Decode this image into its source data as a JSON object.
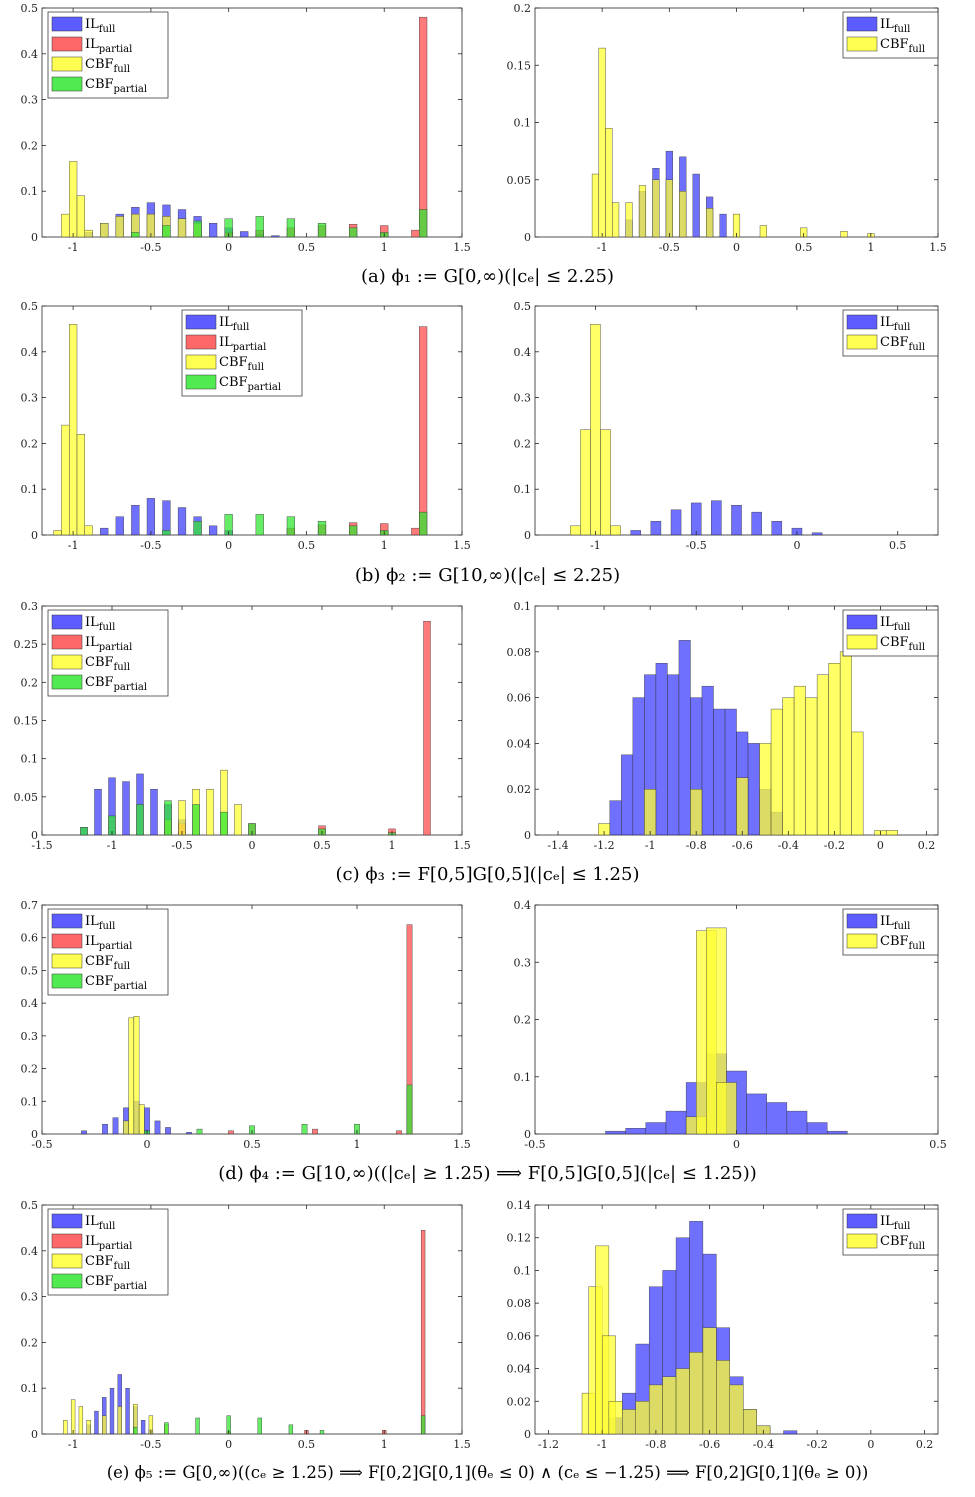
{
  "colors": {
    "IL_full": "#4040ff",
    "IL_partial": "#ff4d4d",
    "CBF_full": "#ffff33",
    "CBF_partial": "#33e633"
  },
  "legend_labels": {
    "IL_full": [
      "IL",
      "full"
    ],
    "IL_partial": [
      "IL",
      "partial"
    ],
    "CBF_full": [
      "CBF",
      "full"
    ],
    "CBF_partial": [
      "CBF",
      "partial"
    ]
  },
  "captions": [
    "(a) ϕ₁ := G[0,∞)(|cₑ| ≤ 2.25)",
    "(b) ϕ₂ := G[10,∞)(|cₑ| ≤ 2.25)",
    "(c) ϕ₃ := F[0,5]G[0,5](|cₑ| ≤ 1.25)",
    "(d) ϕ₄ := G[10,∞)((|cₑ| ≥ 1.25) ⟹ F[0,5]G[0,5](|cₑ| ≤ 1.25))",
    "(e) ϕ₅ := G[0,∞)((cₑ ≥ 1.25) ⟹ F[0,2]G[0,1](θₑ ≤ 0) ∧ (cₑ ≤ −1.25) ⟹ F[0,2]G[0,1](θₑ ≥ 0))"
  ],
  "chart_data": [
    {
      "type": "bar",
      "panel": "a-left",
      "xlim": [
        -1.2,
        1.5
      ],
      "ylim": [
        0,
        0.5
      ],
      "xticks": [
        "-1",
        "-0.5",
        "0",
        "0.5",
        "1",
        "1.5"
      ],
      "yticks": [
        "0",
        "0.1",
        "0.2",
        "0.3",
        "0.4",
        "0.5"
      ],
      "legend": [
        "IL_full",
        "IL_partial",
        "CBF_full",
        "CBF_partial"
      ],
      "legend_position": "top-left",
      "series": [
        {
          "key": "IL_full",
          "x": [
            -0.9,
            -0.8,
            -0.7,
            -0.6,
            -0.5,
            -0.4,
            -0.3,
            -0.2,
            -0.1,
            0,
            0.1,
            0.2,
            0.3
          ],
          "values": [
            0.01,
            0.03,
            0.05,
            0.065,
            0.075,
            0.07,
            0.06,
            0.045,
            0.03,
            0.02,
            0.012,
            0.006,
            0.003
          ]
        },
        {
          "key": "IL_partial",
          "x": [
            -0.2,
            0,
            0.2,
            0.4,
            0.6,
            0.8,
            1.0,
            1.2,
            1.25
          ],
          "values": [
            0.005,
            0.01,
            0.015,
            0.02,
            0.025,
            0.028,
            0.025,
            0.015,
            0.48
          ]
        },
        {
          "key": "CBF_full",
          "x": [
            -1.05,
            -1.0,
            -0.95,
            -0.9,
            -0.8,
            -0.7,
            -0.6,
            -0.5,
            -0.4,
            -0.3,
            -0.2
          ],
          "values": [
            0.05,
            0.165,
            0.09,
            0.015,
            0.03,
            0.045,
            0.05,
            0.05,
            0.045,
            0.04,
            0.03
          ]
        },
        {
          "key": "CBF_partial",
          "x": [
            -0.6,
            -0.4,
            -0.2,
            0,
            0.2,
            0.4,
            0.6,
            0.8,
            1.0,
            1.25
          ],
          "values": [
            0.01,
            0.025,
            0.035,
            0.04,
            0.045,
            0.04,
            0.03,
            0.02,
            0.01,
            0.06
          ]
        }
      ]
    },
    {
      "type": "bar",
      "panel": "a-right",
      "xlim": [
        -1.5,
        1.5
      ],
      "ylim": [
        0,
        0.2
      ],
      "xticks": [
        "-1",
        "-0.5",
        "0",
        "0.5",
        "1",
        "1.5"
      ],
      "yticks": [
        "0",
        "0.05",
        "0.1",
        "0.15",
        "0.2"
      ],
      "legend": [
        "IL_full",
        "CBF_full"
      ],
      "legend_position": "top-right",
      "series": [
        {
          "key": "IL_full",
          "x": [
            -0.8,
            -0.7,
            -0.6,
            -0.5,
            -0.4,
            -0.3,
            -0.2,
            -0.1
          ],
          "values": [
            0.015,
            0.04,
            0.06,
            0.075,
            0.07,
            0.055,
            0.035,
            0.02
          ]
        },
        {
          "key": "CBF_full",
          "x": [
            -1.05,
            -1.0,
            -0.95,
            -0.9,
            -0.8,
            -0.7,
            -0.6,
            -0.5,
            -0.4,
            -0.2,
            0,
            0.2,
            0.5,
            0.8,
            1.0
          ],
          "values": [
            0.055,
            0.165,
            0.095,
            0.03,
            0.03,
            0.045,
            0.05,
            0.05,
            0.04,
            0.025,
            0.02,
            0.01,
            0.008,
            0.005,
            0.003
          ]
        }
      ]
    },
    {
      "type": "bar",
      "panel": "b-left",
      "xlim": [
        -1.2,
        1.5
      ],
      "ylim": [
        0,
        0.5
      ],
      "xticks": [
        "-1",
        "-0.5",
        "0",
        "0.5",
        "1",
        "1.5"
      ],
      "yticks": [
        "0",
        "0.1",
        "0.2",
        "0.3",
        "0.4",
        "0.5"
      ],
      "legend": [
        "IL_full",
        "IL_partial",
        "CBF_full",
        "CBF_partial"
      ],
      "legend_position": "top-center",
      "series": [
        {
          "key": "IL_full",
          "x": [
            -0.8,
            -0.7,
            -0.6,
            -0.5,
            -0.4,
            -0.3,
            -0.2,
            -0.1,
            0
          ],
          "values": [
            0.015,
            0.04,
            0.065,
            0.08,
            0.075,
            0.06,
            0.04,
            0.02,
            0.01
          ]
        },
        {
          "key": "IL_partial",
          "x": [
            0.4,
            0.6,
            0.8,
            1.0,
            1.2,
            1.25
          ],
          "values": [
            0.015,
            0.022,
            0.027,
            0.025,
            0.015,
            0.455
          ]
        },
        {
          "key": "CBF_full",
          "x": [
            -1.1,
            -1.05,
            -1.0,
            -0.95,
            -0.9
          ],
          "values": [
            0.01,
            0.24,
            0.46,
            0.22,
            0.02
          ]
        },
        {
          "key": "CBF_partial",
          "x": [
            -0.4,
            -0.2,
            0,
            0.2,
            0.4,
            0.6,
            0.8,
            1.0,
            1.25
          ],
          "values": [
            0.01,
            0.03,
            0.045,
            0.045,
            0.04,
            0.03,
            0.02,
            0.01,
            0.05
          ]
        }
      ]
    },
    {
      "type": "bar",
      "panel": "b-right",
      "xlim": [
        -1.3,
        0.7
      ],
      "ylim": [
        0,
        0.5
      ],
      "xticks": [
        "-1",
        "-0.5",
        "0",
        "0.5"
      ],
      "yticks": [
        "0",
        "0.1",
        "0.2",
        "0.3",
        "0.4",
        "0.5"
      ],
      "legend": [
        "IL_full",
        "CBF_full"
      ],
      "legend_position": "top-right",
      "series": [
        {
          "key": "IL_full",
          "x": [
            -0.8,
            -0.7,
            -0.6,
            -0.5,
            -0.4,
            -0.3,
            -0.2,
            -0.1,
            0,
            0.1
          ],
          "values": [
            0.01,
            0.03,
            0.055,
            0.07,
            0.075,
            0.065,
            0.05,
            0.03,
            0.015,
            0.005
          ]
        },
        {
          "key": "CBF_full",
          "x": [
            -1.1,
            -1.05,
            -1.0,
            -0.95,
            -0.9
          ],
          "values": [
            0.02,
            0.23,
            0.46,
            0.23,
            0.02
          ]
        }
      ]
    },
    {
      "type": "bar",
      "panel": "c-left",
      "xlim": [
        -1.5,
        1.5
      ],
      "ylim": [
        0,
        0.3
      ],
      "xticks": [
        "-1.5",
        "-1",
        "-0.5",
        "0",
        "0.5",
        "1",
        "1.5"
      ],
      "yticks": [
        "0",
        "0.05",
        "0.1",
        "0.15",
        "0.2",
        "0.25",
        "0.3"
      ],
      "legend": [
        "IL_full",
        "IL_partial",
        "CBF_full",
        "CBF_partial"
      ],
      "legend_position": "top-left",
      "series": [
        {
          "key": "IL_full",
          "x": [
            -1.2,
            -1.1,
            -1.0,
            -0.9,
            -0.8,
            -0.7,
            -0.6,
            -0.5
          ],
          "values": [
            0.01,
            0.06,
            0.075,
            0.07,
            0.08,
            0.06,
            0.04,
            0.02
          ]
        },
        {
          "key": "IL_partial",
          "x": [
            -0.5,
            0,
            0.5,
            1.0,
            1.25
          ],
          "values": [
            0.015,
            0.015,
            0.012,
            0.008,
            0.28
          ]
        },
        {
          "key": "CBF_full",
          "x": [
            -0.6,
            -0.5,
            -0.4,
            -0.3,
            -0.2,
            -0.1
          ],
          "values": [
            0.02,
            0.045,
            0.06,
            0.06,
            0.085,
            0.04
          ]
        },
        {
          "key": "CBF_partial",
          "x": [
            -1.2,
            -1.0,
            -0.8,
            -0.6,
            -0.4,
            -0.2,
            0,
            0.5,
            1.0
          ],
          "values": [
            0.01,
            0.025,
            0.04,
            0.045,
            0.04,
            0.03,
            0.015,
            0.008,
            0.003
          ]
        }
      ]
    },
    {
      "type": "bar",
      "panel": "c-right",
      "xlim": [
        -1.5,
        0.25
      ],
      "ylim": [
        0,
        0.1
      ],
      "xticks": [
        "-1.4",
        "-1.2",
        "-1",
        "-0.8",
        "-0.6",
        "-0.4",
        "-0.2",
        "0",
        "0.2"
      ],
      "yticks": [
        "0",
        "0.02",
        "0.04",
        "0.06",
        "0.08",
        "0.1"
      ],
      "legend": [
        "IL_full",
        "CBF_full"
      ],
      "legend_position": "top-right",
      "series": [
        {
          "key": "IL_full",
          "x": [
            -1.15,
            -1.1,
            -1.05,
            -1.0,
            -0.95,
            -0.9,
            -0.85,
            -0.8,
            -0.75,
            -0.7,
            -0.65,
            -0.6,
            -0.55,
            -0.5,
            -0.45
          ],
          "values": [
            0.015,
            0.035,
            0.06,
            0.07,
            0.075,
            0.07,
            0.085,
            0.06,
            0.065,
            0.055,
            0.055,
            0.045,
            0.04,
            0.02,
            0.01
          ]
        },
        {
          "key": "CBF_full",
          "x": [
            -1.2,
            -1.0,
            -0.8,
            -0.6,
            -0.5,
            -0.45,
            -0.4,
            -0.35,
            -0.3,
            -0.25,
            -0.2,
            -0.15,
            -0.1,
            0,
            0.05
          ],
          "values": [
            0.005,
            0.02,
            0.02,
            0.025,
            0.04,
            0.055,
            0.06,
            0.065,
            0.06,
            0.07,
            0.075,
            0.08,
            0.045,
            0.002,
            0.002
          ]
        }
      ]
    },
    {
      "type": "bar",
      "panel": "d-left",
      "xlim": [
        -0.5,
        1.5
      ],
      "ylim": [
        0,
        0.7
      ],
      "xticks": [
        "-0.5",
        "0",
        "0.5",
        "1",
        "1.5"
      ],
      "yticks": [
        "0",
        "0.1",
        "0.2",
        "0.3",
        "0.4",
        "0.5",
        "0.6",
        "0.7"
      ],
      "legend": [
        "IL_full",
        "IL_partial",
        "CBF_full",
        "CBF_partial"
      ],
      "legend_position": "top-left",
      "series": [
        {
          "key": "IL_full",
          "x": [
            -0.3,
            -0.2,
            -0.15,
            -0.1,
            -0.05,
            0,
            0.05,
            0.1,
            0.2
          ],
          "values": [
            0.01,
            0.03,
            0.05,
            0.08,
            0.1,
            0.08,
            0.04,
            0.02,
            0.005
          ]
        },
        {
          "key": "IL_partial",
          "x": [
            0.4,
            0.8,
            1.2,
            1.25
          ],
          "values": [
            0.01,
            0.015,
            0.01,
            0.64
          ]
        },
        {
          "key": "CBF_full",
          "x": [
            -0.1,
            -0.075,
            -0.05,
            -0.025
          ],
          "values": [
            0.04,
            0.355,
            0.36,
            0.09
          ]
        },
        {
          "key": "CBF_partial",
          "x": [
            0,
            0.25,
            0.5,
            0.75,
            1.0,
            1.25
          ],
          "values": [
            0.01,
            0.015,
            0.025,
            0.03,
            0.03,
            0.15
          ]
        }
      ]
    },
    {
      "type": "bar",
      "panel": "d-right",
      "xlim": [
        -0.5,
        0.5
      ],
      "ylim": [
        0,
        0.4
      ],
      "xticks": [
        "-0.5",
        "0",
        "0.5"
      ],
      "yticks": [
        "0",
        "0.1",
        "0.2",
        "0.3",
        "0.4"
      ],
      "legend": [
        "IL_full",
        "CBF_full"
      ],
      "legend_position": "top-right",
      "series": [
        {
          "key": "IL_full",
          "x": [
            -0.3,
            -0.25,
            -0.2,
            -0.15,
            -0.1,
            -0.05,
            0,
            0.05,
            0.1,
            0.15,
            0.2,
            0.25
          ],
          "values": [
            0.005,
            0.01,
            0.02,
            0.04,
            0.09,
            0.14,
            0.11,
            0.07,
            0.055,
            0.04,
            0.02,
            0.005
          ]
        },
        {
          "key": "CBF_full",
          "x": [
            -0.1,
            -0.075,
            -0.05,
            -0.025
          ],
          "values": [
            0.03,
            0.355,
            0.36,
            0.09
          ]
        }
      ]
    },
    {
      "type": "bar",
      "panel": "e-left",
      "xlim": [
        -1.2,
        1.5
      ],
      "ylim": [
        0,
        0.5
      ],
      "xticks": [
        "-1",
        "-0.5",
        "0",
        "0.5",
        "1",
        "1.5"
      ],
      "yticks": [
        "0",
        "0.1",
        "0.2",
        "0.3",
        "0.4",
        "0.5"
      ],
      "legend": [
        "IL_full",
        "IL_partial",
        "CBF_full",
        "CBF_partial"
      ],
      "legend_position": "top-left",
      "series": [
        {
          "key": "IL_full",
          "x": [
            -0.9,
            -0.85,
            -0.8,
            -0.75,
            -0.7,
            -0.65,
            -0.6,
            -0.55,
            -0.5
          ],
          "values": [
            0.02,
            0.05,
            0.08,
            0.1,
            0.13,
            0.1,
            0.06,
            0.03,
            0.01
          ]
        },
        {
          "key": "IL_partial",
          "x": [
            0,
            0.5,
            1.0,
            1.25
          ],
          "values": [
            0.005,
            0.008,
            0.008,
            0.445
          ]
        },
        {
          "key": "CBF_full",
          "x": [
            -1.05,
            -1.0,
            -0.95,
            -0.9,
            -0.8,
            -0.7,
            -0.6,
            -0.5,
            -0.4
          ],
          "values": [
            0.03,
            0.075,
            0.06,
            0.03,
            0.04,
            0.06,
            0.065,
            0.04,
            0.02
          ]
        },
        {
          "key": "CBF_partial",
          "x": [
            -0.6,
            -0.4,
            -0.2,
            0,
            0.2,
            0.4,
            0.6,
            1.25
          ],
          "values": [
            0.015,
            0.025,
            0.035,
            0.04,
            0.035,
            0.02,
            0.008,
            0.04
          ]
        }
      ]
    },
    {
      "type": "bar",
      "panel": "e-right",
      "xlim": [
        -1.25,
        0.25
      ],
      "ylim": [
        0,
        0.14
      ],
      "xticks": [
        "-1.2",
        "-1",
        "-0.8",
        "-0.6",
        "-0.4",
        "-0.2",
        "0",
        "0.2"
      ],
      "yticks": [
        "0",
        "0.02",
        "0.04",
        "0.06",
        "0.08",
        "0.1",
        "0.12",
        "0.14"
      ],
      "legend": [
        "IL_full",
        "CBF_full"
      ],
      "legend_position": "top-right",
      "series": [
        {
          "key": "IL_full",
          "x": [
            -0.95,
            -0.9,
            -0.85,
            -0.8,
            -0.75,
            -0.7,
            -0.65,
            -0.6,
            -0.55,
            -0.5,
            -0.45,
            -0.4,
            -0.3
          ],
          "values": [
            0.01,
            0.025,
            0.055,
            0.09,
            0.1,
            0.12,
            0.13,
            0.11,
            0.065,
            0.035,
            0.015,
            0.005,
            0.002
          ]
        },
        {
          "key": "CBF_full",
          "x": [
            -1.05,
            -1.025,
            -1.0,
            -0.975,
            -0.95,
            -0.9,
            -0.85,
            -0.8,
            -0.75,
            -0.7,
            -0.65,
            -0.6,
            -0.55,
            -0.5,
            -0.45,
            -0.4
          ],
          "values": [
            0.025,
            0.09,
            0.115,
            0.06,
            0.02,
            0.015,
            0.02,
            0.03,
            0.035,
            0.04,
            0.05,
            0.065,
            0.045,
            0.03,
            0.015,
            0.005
          ]
        }
      ]
    }
  ]
}
